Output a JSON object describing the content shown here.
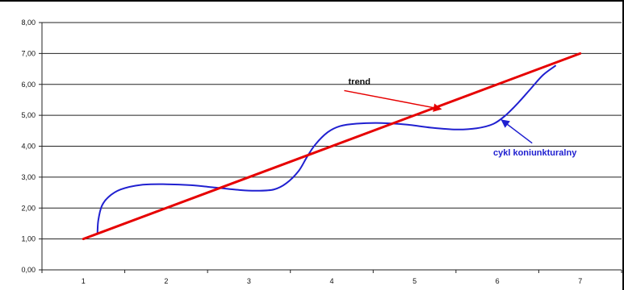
{
  "chart_data": {
    "type": "line",
    "title": "",
    "xlabel": "",
    "ylabel": "",
    "xlim": [
      0.5,
      7.5
    ],
    "ylim": [
      0,
      8
    ],
    "x_ticks": [
      "1",
      "2",
      "3",
      "4",
      "5",
      "6",
      "7"
    ],
    "y_ticks": [
      "0,00",
      "1,00",
      "2,00",
      "3,00",
      "4,00",
      "5,00",
      "6,00",
      "7,00",
      "8,00"
    ],
    "grid": "horizontal",
    "legend": "none",
    "series": [
      {
        "name": "trend",
        "color": "#e60000",
        "points": [
          [
            1,
            1.0
          ],
          [
            7,
            7.0
          ]
        ]
      },
      {
        "name": "cykl koniunkturalny",
        "color": "#2020d0",
        "points": [
          [
            1.17,
            1.2
          ],
          [
            1.18,
            1.6
          ],
          [
            1.22,
            2.05
          ],
          [
            1.3,
            2.35
          ],
          [
            1.45,
            2.6
          ],
          [
            1.7,
            2.75
          ],
          [
            2.0,
            2.77
          ],
          [
            2.3,
            2.74
          ],
          [
            2.6,
            2.66
          ],
          [
            2.9,
            2.58
          ],
          [
            3.1,
            2.56
          ],
          [
            3.3,
            2.6
          ],
          [
            3.45,
            2.8
          ],
          [
            3.6,
            3.2
          ],
          [
            3.7,
            3.65
          ],
          [
            3.8,
            4.05
          ],
          [
            3.95,
            4.45
          ],
          [
            4.1,
            4.65
          ],
          [
            4.3,
            4.73
          ],
          [
            4.6,
            4.75
          ],
          [
            4.9,
            4.7
          ],
          [
            5.2,
            4.6
          ],
          [
            5.5,
            4.54
          ],
          [
            5.75,
            4.58
          ],
          [
            5.95,
            4.72
          ],
          [
            6.1,
            5.0
          ],
          [
            6.25,
            5.4
          ],
          [
            6.4,
            5.85
          ],
          [
            6.55,
            6.3
          ],
          [
            6.7,
            6.6
          ]
        ]
      }
    ],
    "annotations": [
      {
        "text": "trend",
        "color": "#111111",
        "label_pos": [
          4.2,
          6.0
        ],
        "arrow_from": [
          4.15,
          5.8
        ],
        "arrow_to": [
          5.32,
          5.2
        ],
        "arrow_color": "#e60000"
      },
      {
        "text": "cykl koniunkturalny",
        "color": "#2020d0",
        "label_pos": [
          5.95,
          3.7
        ],
        "arrow_from": [
          6.42,
          4.1
        ],
        "arrow_to": [
          6.05,
          4.85
        ],
        "arrow_color": "#2020d0"
      }
    ]
  }
}
